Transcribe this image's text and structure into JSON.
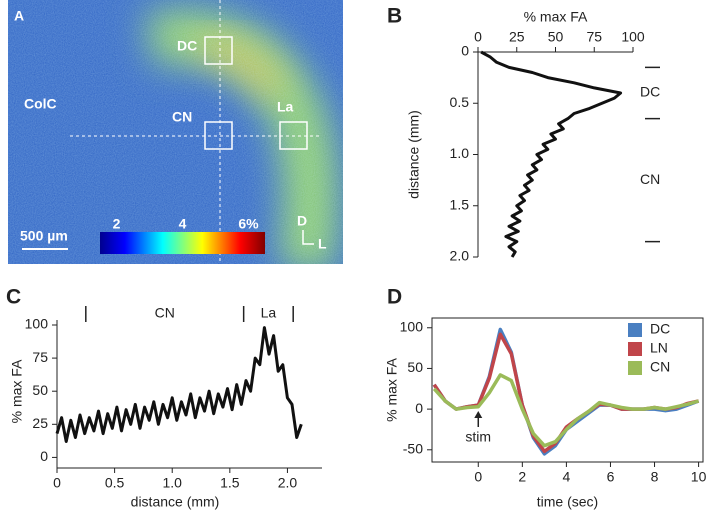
{
  "chart_data": [
    {
      "type": "image",
      "panel_label": "A",
      "labels": [
        "DC",
        "CN",
        "La",
        "ColC"
      ],
      "scale_bar": "500 µm",
      "colorbar": {
        "lim": [
          1.5,
          6.5
        ],
        "ticks": [
          2,
          4,
          {
            "value": 6,
            "label": "6%"
          }
        ]
      },
      "orientation": [
        "D",
        "L"
      ]
    },
    {
      "type": "line",
      "orientation": "vertical",
      "panel_label": "B",
      "xlabel": "% max FA",
      "ylabel": "distance (mm)",
      "y": [
        0,
        0.05,
        0.1,
        0.15,
        0.2,
        0.25,
        0.3,
        0.35,
        0.4,
        0.45,
        0.5,
        0.55,
        0.6,
        0.65,
        0.7,
        0.75,
        0.8,
        0.85,
        0.9,
        0.95,
        1.0,
        1.05,
        1.1,
        1.15,
        1.2,
        1.25,
        1.3,
        1.35,
        1.4,
        1.45,
        1.5,
        1.55,
        1.6,
        1.65,
        1.7,
        1.75,
        1.8,
        1.85,
        1.9,
        1.95,
        2.0
      ],
      "values": [
        2,
        8,
        12,
        20,
        35,
        45,
        62,
        75,
        92,
        88,
        80,
        72,
        62,
        58,
        52,
        55,
        47,
        50,
        42,
        45,
        38,
        41,
        35,
        38,
        32,
        35,
        30,
        33,
        27,
        30,
        25,
        28,
        22,
        27,
        20,
        26,
        18,
        25,
        20,
        24,
        22
      ],
      "color": "#111111",
      "xlim": [
        0,
        100
      ],
      "xticks": [
        0,
        25,
        50,
        75,
        100
      ],
      "ylim": [
        0,
        2
      ],
      "yticks": [
        0,
        0.5,
        {
          "value": 1,
          "label": "1.0"
        },
        1.5,
        {
          "value": 2,
          "label": "2.0"
        }
      ],
      "boundaries": [
        0.15,
        0.65,
        1.85
      ],
      "region_labels": [
        "DC",
        "CN"
      ]
    },
    {
      "type": "line",
      "orientation": "horizontal",
      "panel_label": "C",
      "xlabel": "distance (mm)",
      "ylabel": "% max FA",
      "x": [
        0,
        0.04,
        0.08,
        0.12,
        0.16,
        0.2,
        0.24,
        0.28,
        0.32,
        0.36,
        0.4,
        0.44,
        0.48,
        0.52,
        0.56,
        0.6,
        0.64,
        0.68,
        0.72,
        0.76,
        0.8,
        0.84,
        0.88,
        0.92,
        0.96,
        1.0,
        1.04,
        1.08,
        1.12,
        1.16,
        1.2,
        1.24,
        1.28,
        1.32,
        1.36,
        1.4,
        1.44,
        1.48,
        1.52,
        1.56,
        1.6,
        1.64,
        1.68,
        1.72,
        1.76,
        1.8,
        1.84,
        1.88,
        1.92,
        1.96,
        2.0,
        2.04,
        2.08,
        2.12
      ],
      "values": [
        18,
        30,
        12,
        28,
        15,
        32,
        18,
        30,
        20,
        35,
        18,
        33,
        22,
        38,
        20,
        36,
        25,
        40,
        22,
        38,
        28,
        42,
        25,
        40,
        30,
        45,
        28,
        42,
        32,
        48,
        30,
        45,
        35,
        50,
        33,
        48,
        38,
        52,
        36,
        55,
        40,
        58,
        50,
        75,
        70,
        98,
        78,
        92,
        65,
        70,
        45,
        40,
        15,
        25
      ],
      "color": "#111111",
      "xlim": [
        0,
        2.3
      ],
      "xticks": [
        0,
        0.5,
        {
          "value": 1,
          "label": "1.0"
        },
        1.5,
        {
          "value": 2,
          "label": "2.0"
        }
      ],
      "ylim": [
        -8,
        100
      ],
      "yticks": [
        0,
        25,
        50,
        75,
        100
      ],
      "boundaries": [
        0.25,
        1.62,
        2.05
      ],
      "region_labels": [
        "CN",
        "La"
      ]
    },
    {
      "type": "multiline",
      "panel_label": "D",
      "xlabel": "time (sec)",
      "ylabel": "% max FA",
      "x": [
        -2,
        -1.5,
        -1,
        -0.5,
        0,
        0.5,
        1,
        1.5,
        2,
        2.5,
        3,
        3.5,
        4,
        4.5,
        5,
        5.5,
        6,
        6.5,
        7,
        7.5,
        8,
        8.5,
        9,
        9.5,
        10
      ],
      "series": [
        {
          "name": "DC",
          "color": "#4a7fc1",
          "values": [
            30,
            10,
            0,
            3,
            5,
            40,
            98,
            70,
            5,
            -35,
            -55,
            -45,
            -25,
            -15,
            -5,
            5,
            5,
            0,
            0,
            0,
            0,
            -2,
            0,
            5,
            10
          ]
        },
        {
          "name": "LN",
          "color": "#c0454a",
          "values": [
            30,
            10,
            0,
            3,
            5,
            38,
            92,
            68,
            5,
            -33,
            -52,
            -42,
            -22,
            -12,
            -3,
            6,
            5,
            0,
            0,
            0,
            2,
            0,
            2,
            7,
            10
          ]
        },
        {
          "name": "CN",
          "color": "#9bbb59",
          "values": [
            25,
            10,
            0,
            2,
            3,
            20,
            42,
            35,
            0,
            -30,
            -45,
            -40,
            -25,
            -12,
            -3,
            8,
            5,
            2,
            0,
            0,
            2,
            0,
            3,
            6,
            10
          ]
        }
      ],
      "xlim": [
        -2.1,
        10.2
      ],
      "xticks": [
        0,
        2,
        4,
        6,
        8,
        10
      ],
      "ylim": [
        -65,
        112
      ],
      "yticks": [
        -50,
        0,
        50,
        100
      ],
      "legend": "upper right",
      "annotations": [
        {
          "text": "stim",
          "x": 0
        }
      ]
    }
  ]
}
